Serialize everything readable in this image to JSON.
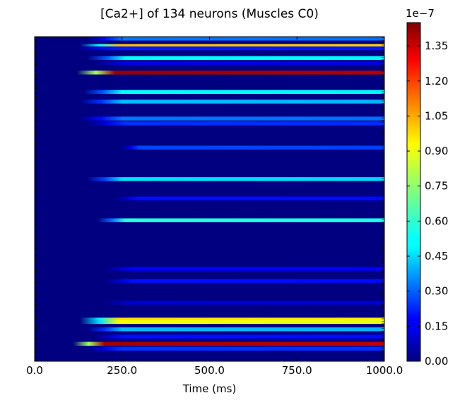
{
  "chart_data": {
    "type": "heatmap",
    "title": "[Ca2+] of 134 neurons (Muscles C0)",
    "xlabel": "Time (ms)",
    "ylabel": "",
    "xlim": [
      0,
      1000
    ],
    "x_ticks": [
      "0.0",
      "250.0",
      "500.0",
      "750.0",
      "1000.0"
    ],
    "x_tick_values": [
      0,
      250,
      500,
      750,
      1000
    ],
    "row_count": 134,
    "colorbar": {
      "colormap": "jet",
      "range": [
        0.0,
        1.45e-07
      ],
      "exponent_label": "1e−7",
      "ticks": [
        "0.00",
        "0.15",
        "0.30",
        "0.45",
        "0.60",
        "0.75",
        "0.90",
        "1.05",
        "1.20",
        "1.35"
      ],
      "tick_values": [
        0.0,
        0.15,
        0.3,
        0.45,
        0.6,
        0.75,
        0.9,
        1.05,
        1.2,
        1.35
      ]
    },
    "rows": [
      {
        "row": 1,
        "onset_ms": 150,
        "peak_ms": 250,
        "level": 0.35
      },
      {
        "row": 4,
        "onset_ms": 130,
        "peak_ms": 240,
        "level": 1.0
      },
      {
        "row": 5,
        "onset_ms": 120,
        "peak_ms": 230,
        "level": 0.22
      },
      {
        "row": 9,
        "onset_ms": 150,
        "peak_ms": 260,
        "level": 0.55
      },
      {
        "row": 11,
        "onset_ms": 170,
        "peak_ms": 260,
        "level": 0.15
      },
      {
        "row": 15,
        "onset_ms": 120,
        "peak_ms": 230,
        "level": 1.42
      },
      {
        "row": 23,
        "onset_ms": 140,
        "peak_ms": 250,
        "level": 0.55
      },
      {
        "row": 27,
        "onset_ms": 130,
        "peak_ms": 250,
        "level": 0.45
      },
      {
        "row": 34,
        "onset_ms": 130,
        "peak_ms": 250,
        "level": 0.35
      },
      {
        "row": 36,
        "onset_ms": 150,
        "peak_ms": 260,
        "level": 0.25
      },
      {
        "row": 46,
        "onset_ms": 250,
        "peak_ms": 300,
        "level": 0.28
      },
      {
        "row": 59,
        "onset_ms": 150,
        "peak_ms": 250,
        "level": 0.5
      },
      {
        "row": 67,
        "onset_ms": 230,
        "peak_ms": 300,
        "level": 0.2
      },
      {
        "row": 76,
        "onset_ms": 180,
        "peak_ms": 260,
        "level": 0.6
      },
      {
        "row": 96,
        "onset_ms": 200,
        "peak_ms": 280,
        "level": 0.18
      },
      {
        "row": 101,
        "onset_ms": 200,
        "peak_ms": 280,
        "level": 0.2
      },
      {
        "row": 110,
        "onset_ms": 200,
        "peak_ms": 280,
        "level": 0.12
      },
      {
        "row": 117,
        "onset_ms": 130,
        "peak_ms": 240,
        "level": 0.95
      },
      {
        "row": 118,
        "onset_ms": 130,
        "peak_ms": 240,
        "level": 0.9
      },
      {
        "row": 121,
        "onset_ms": 150,
        "peak_ms": 250,
        "level": 0.45
      },
      {
        "row": 124,
        "onset_ms": 170,
        "peak_ms": 260,
        "level": 0.2
      },
      {
        "row": 127,
        "onset_ms": 110,
        "peak_ms": 200,
        "level": 1.4
      },
      {
        "row": 129,
        "onset_ms": 150,
        "peak_ms": 250,
        "level": 0.25
      }
    ]
  }
}
